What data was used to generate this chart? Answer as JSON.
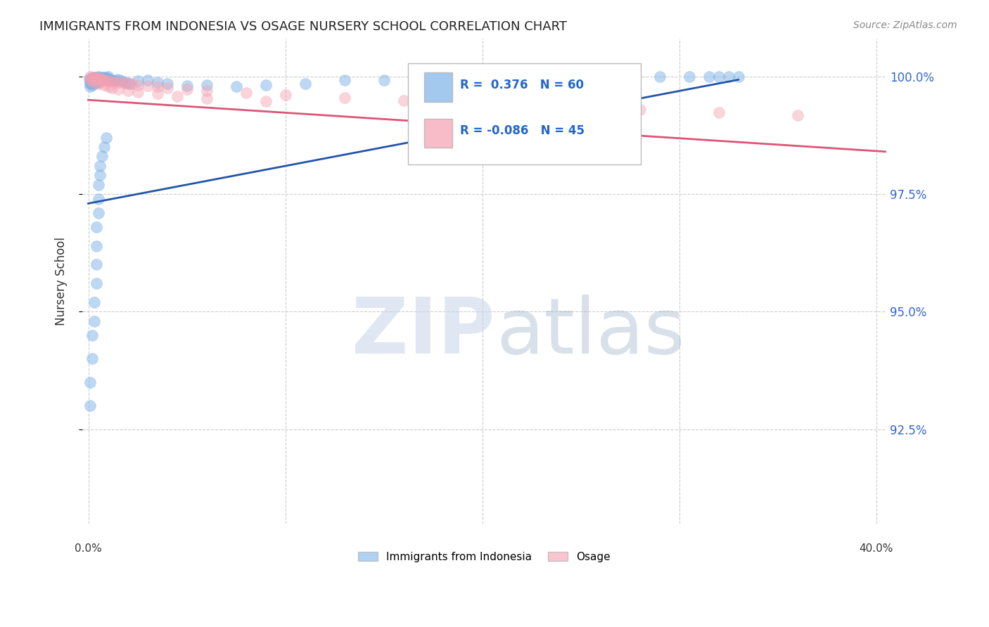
{
  "title": "IMMIGRANTS FROM INDONESIA VS OSAGE NURSERY SCHOOL CORRELATION CHART",
  "source": "Source: ZipAtlas.com",
  "ylabel": "Nursery School",
  "ytick_labels": [
    "100.0%",
    "97.5%",
    "95.0%",
    "92.5%"
  ],
  "ytick_values": [
    1.0,
    0.975,
    0.95,
    0.925
  ],
  "xlim": [
    -0.003,
    0.405
  ],
  "ylim": [
    0.905,
    1.008
  ],
  "blue_color": "#7EB3E8",
  "pink_color": "#F4A0B0",
  "blue_line_color": "#2255AA",
  "pink_line_color": "#DD5577",
  "background_color": "#FFFFFF",
  "grid_color": "#CCCCCC",
  "title_color": "#222222",
  "right_label_color": "#3366CC",
  "blue_scatter_x": [
    0.0005,
    0.001,
    0.001,
    0.001,
    0.001,
    0.0015,
    0.002,
    0.002,
    0.002,
    0.002,
    0.003,
    0.003,
    0.003,
    0.003,
    0.004,
    0.004,
    0.004,
    0.005,
    0.005,
    0.005,
    0.006,
    0.006,
    0.007,
    0.007,
    0.008,
    0.008,
    0.009,
    0.009,
    0.01,
    0.01,
    0.011,
    0.012,
    0.013,
    0.014,
    0.015,
    0.017,
    0.019,
    0.021,
    0.025,
    0.03,
    0.035,
    0.04,
    0.05,
    0.06,
    0.075,
    0.09,
    0.11,
    0.13,
    0.15,
    0.17,
    0.2,
    0.22,
    0.25,
    0.27,
    0.29,
    0.305,
    0.315,
    0.32,
    0.325,
    0.33
  ],
  "blue_scatter_y": [
    0.9995,
    0.9992,
    0.9988,
    0.9984,
    0.9978,
    0.999,
    0.9997,
    0.9993,
    0.9988,
    0.9982,
    0.9998,
    0.9994,
    0.999,
    0.9985,
    0.9998,
    0.9993,
    0.9988,
    0.9999,
    0.9995,
    0.9988,
    0.9998,
    0.9993,
    0.9998,
    0.9994,
    0.9998,
    0.9993,
    0.9998,
    0.9995,
    0.9999,
    0.9995,
    0.9994,
    0.9992,
    0.999,
    0.9992,
    0.9994,
    0.999,
    0.9988,
    0.9985,
    0.999,
    0.9992,
    0.9988,
    0.9985,
    0.998,
    0.9982,
    0.9978,
    0.9982,
    0.9985,
    0.9992,
    0.9992,
    0.9992,
    0.9996,
    0.9994,
    0.9998,
    0.9999,
    0.9999,
    0.9999,
    0.9999,
    0.9999,
    0.9999,
    0.9999
  ],
  "blue_low_y": [
    0.93,
    0.935,
    0.94,
    0.945,
    0.948,
    0.952,
    0.956,
    0.96,
    0.964,
    0.968,
    0.971,
    0.974,
    0.977,
    0.979,
    0.981,
    0.983,
    0.985,
    0.987
  ],
  "blue_low_x": [
    0.001,
    0.001,
    0.002,
    0.002,
    0.003,
    0.003,
    0.004,
    0.004,
    0.004,
    0.004,
    0.005,
    0.005,
    0.005,
    0.006,
    0.006,
    0.007,
    0.008,
    0.009
  ],
  "pink_scatter_x": [
    0.001,
    0.002,
    0.003,
    0.004,
    0.005,
    0.006,
    0.007,
    0.008,
    0.009,
    0.01,
    0.012,
    0.014,
    0.016,
    0.018,
    0.02,
    0.022,
    0.025,
    0.03,
    0.035,
    0.04,
    0.05,
    0.06,
    0.08,
    0.1,
    0.13,
    0.16,
    0.2,
    0.24,
    0.28,
    0.32,
    0.36
  ],
  "pink_scatter_y": [
    0.9999,
    0.9998,
    0.9998,
    0.9997,
    0.9996,
    0.9995,
    0.9993,
    0.9992,
    0.9991,
    0.999,
    0.9989,
    0.9988,
    0.9987,
    0.9986,
    0.9985,
    0.9984,
    0.9982,
    0.998,
    0.9978,
    0.9976,
    0.9973,
    0.997,
    0.9965,
    0.996,
    0.9954,
    0.9948,
    0.9942,
    0.9936,
    0.993,
    0.9924,
    0.9918
  ],
  "pink_extra_x": [
    0.001,
    0.002,
    0.003,
    0.005,
    0.008,
    0.01,
    0.012,
    0.015,
    0.02,
    0.025,
    0.035,
    0.045,
    0.06,
    0.09
  ],
  "pink_extra_y": [
    0.9993,
    0.9991,
    0.9988,
    0.9985,
    0.9982,
    0.9979,
    0.9976,
    0.9973,
    0.997,
    0.9967,
    0.9963,
    0.9958,
    0.9953,
    0.9947
  ],
  "blue_trend_x": [
    0.0,
    0.33
  ],
  "blue_trend_y": [
    0.973,
    0.9993
  ],
  "pink_trend_x": [
    0.0,
    0.405
  ],
  "pink_trend_y": [
    0.995,
    0.984
  ]
}
